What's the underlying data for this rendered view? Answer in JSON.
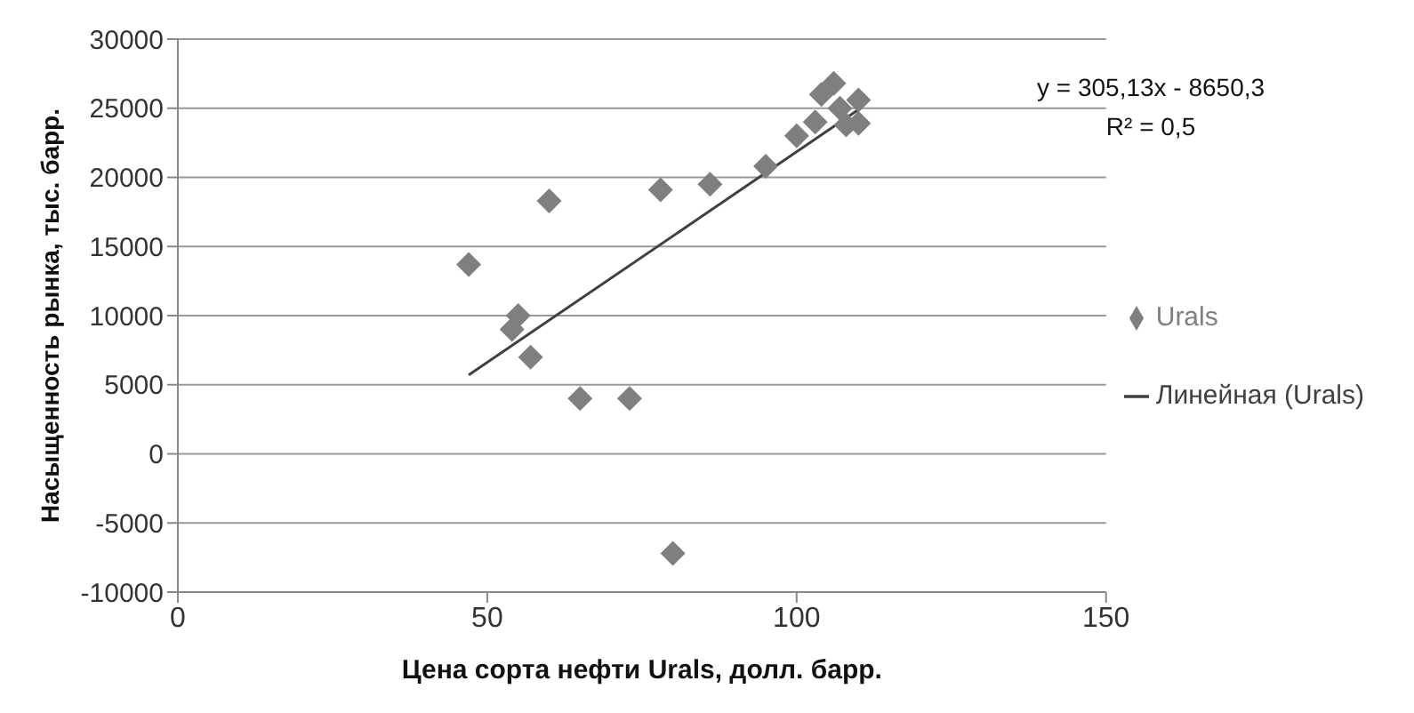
{
  "chart_data": {
    "type": "scatter",
    "xlabel": "Цена сорта  нефти Urals, долл. барр.",
    "ylabel": "Насыщенность  рынка,  тыс.  барр.",
    "xlim": [
      0,
      150
    ],
    "xticks": [
      0,
      50,
      100,
      150
    ],
    "ylim": [
      -10000,
      30000
    ],
    "yticks": [
      -10000,
      -5000,
      0,
      5000,
      10000,
      15000,
      20000,
      25000,
      30000
    ],
    "grid": "y",
    "legend": "right",
    "marker": "diamond",
    "annotations": [
      "y = 305,13x - 8650,3",
      "R² = 0,5"
    ],
    "series": [
      {
        "name": "Urals",
        "color": "#7f7f7f",
        "x": [
          47,
          54,
          55,
          57,
          60,
          65,
          73,
          78,
          80,
          86,
          95,
          100,
          103,
          104,
          106,
          107,
          108,
          110,
          110
        ],
        "values": [
          13700,
          9000,
          10000,
          7000,
          18300,
          4000,
          4000,
          19100,
          -7200,
          19500,
          20800,
          23000,
          24000,
          26000,
          26800,
          25000,
          23800,
          25600,
          23900
        ]
      },
      {
        "name": "Линейная (Urals)",
        "type": "line",
        "color": "#404040",
        "line_style": "solid",
        "marker": "none",
        "x": [
          47,
          110
        ],
        "values": [
          5700,
          24900
        ]
      }
    ]
  }
}
